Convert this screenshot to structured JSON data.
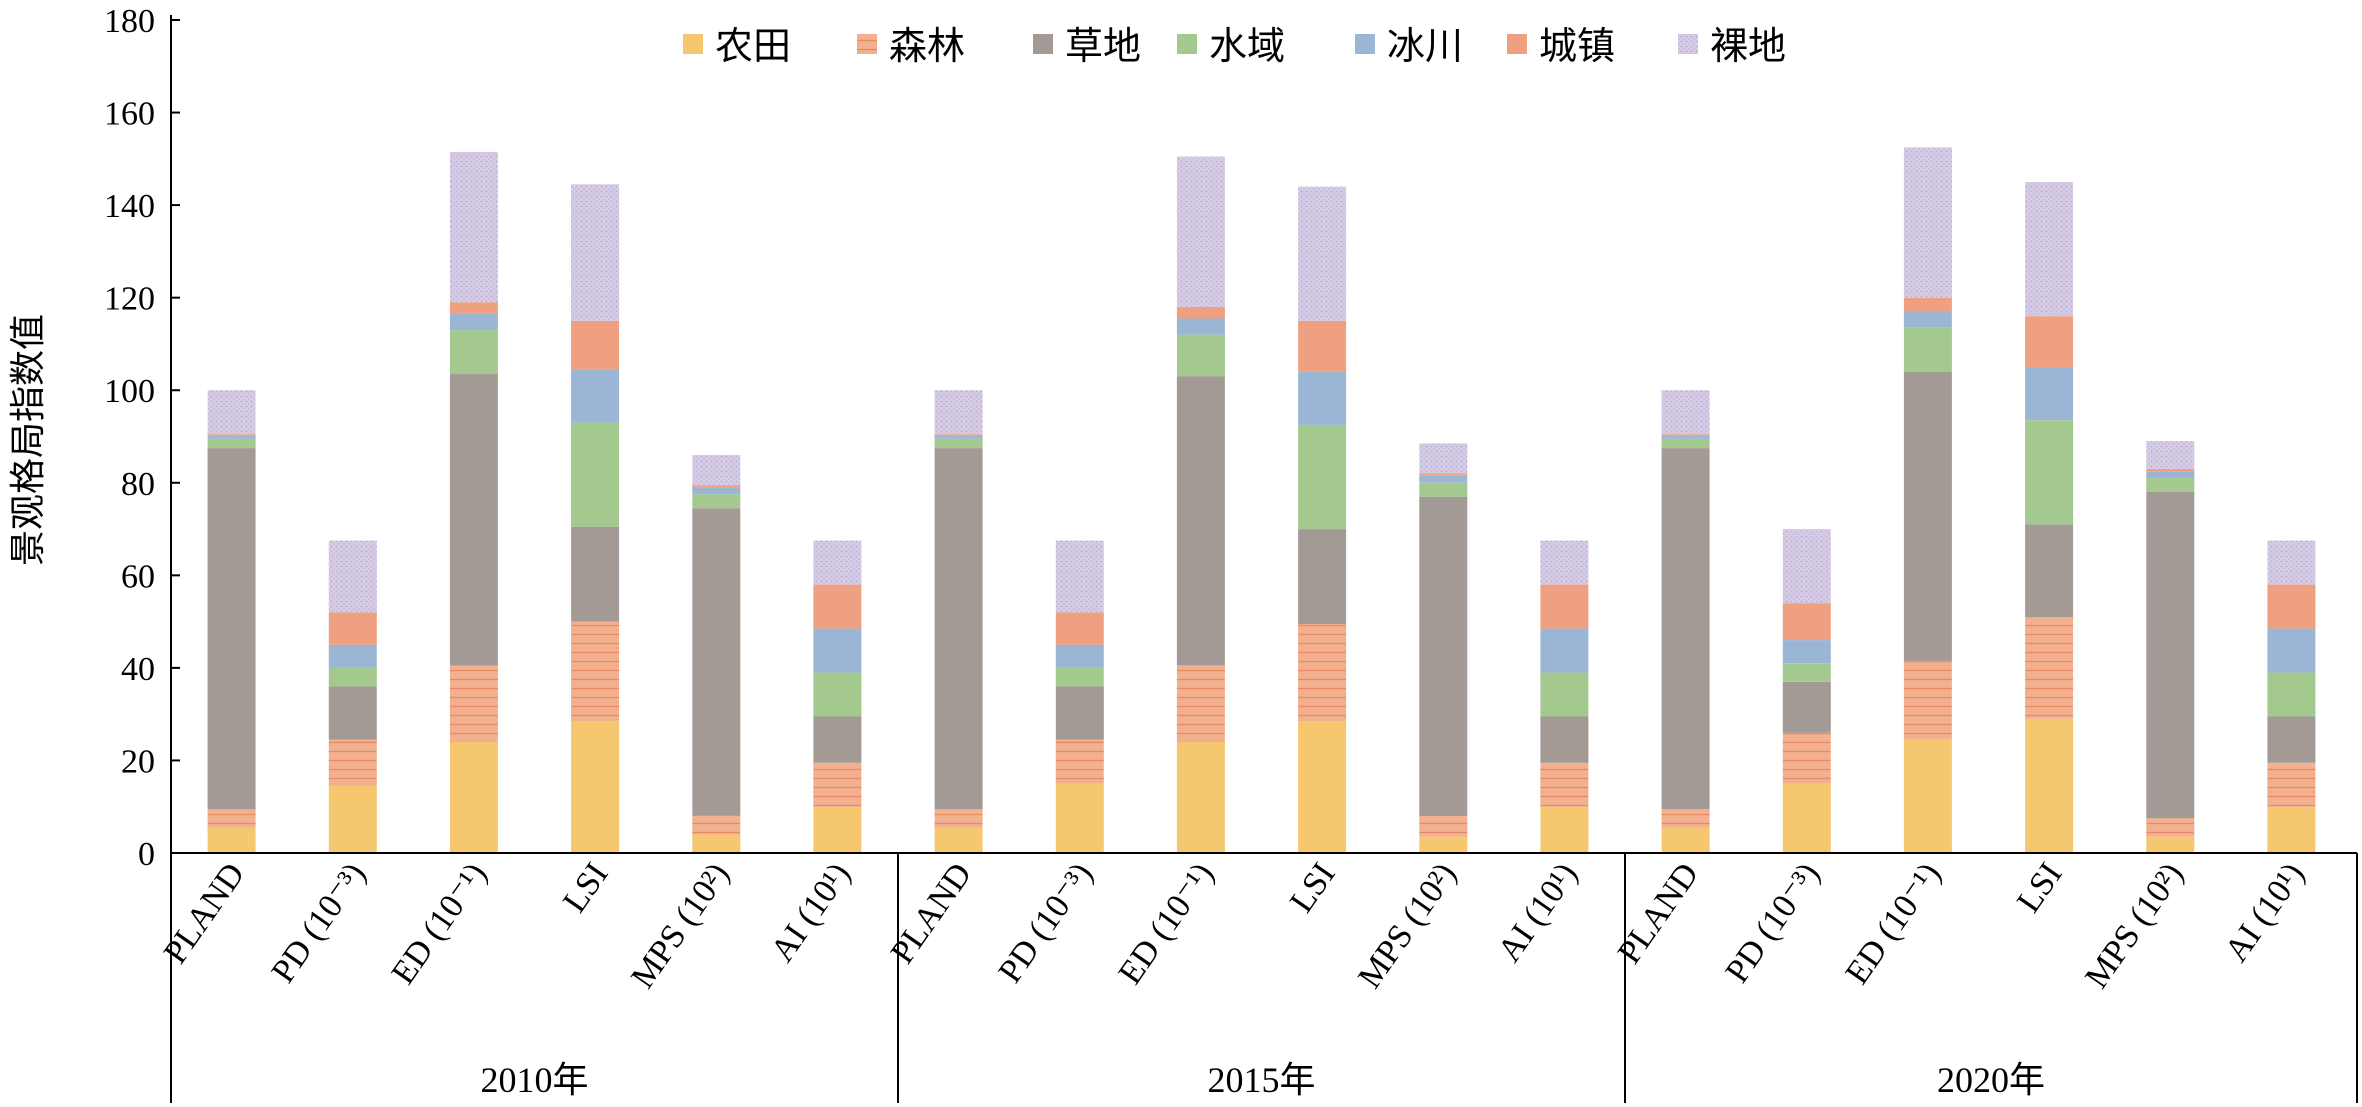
{
  "chart_data": {
    "type": "bar",
    "stacked": true,
    "ylabel": "景观格局指数值",
    "ylim": [
      0,
      180
    ],
    "yticks": [
      0,
      20,
      40,
      60,
      80,
      100,
      120,
      140,
      160,
      180
    ],
    "grid": false,
    "legend_position": "top",
    "group_labels": [
      "2010年",
      "2015年",
      "2020年"
    ],
    "category_labels": [
      "PLAND",
      "PD (10⁻³)",
      "ED (10⁻¹)",
      "LSI",
      "MPS (10²)",
      "AI (10¹)"
    ],
    "series": [
      {
        "name": "农田",
        "color": "#f5c870",
        "pattern": "none",
        "values": [
          5.5,
          14.5,
          24,
          28.5,
          4,
          10,
          5.5,
          15,
          24,
          28.5,
          3.5,
          10,
          5.5,
          15,
          24.5,
          29,
          3.5,
          10
        ]
      },
      {
        "name": "森林",
        "color": "#f2b08f",
        "pattern": "hlines",
        "values": [
          4,
          10,
          16.5,
          21.5,
          4,
          9.5,
          4,
          9.5,
          16.5,
          21,
          4.5,
          9.5,
          4,
          11,
          17,
          22,
          4,
          9.5
        ]
      },
      {
        "name": "草地",
        "color": "#a39a96",
        "pattern": "none",
        "values": [
          78,
          11.5,
          63,
          20.5,
          66.5,
          10,
          78,
          11.5,
          62.5,
          20.5,
          69,
          10,
          78,
          11,
          62.5,
          20,
          70.5,
          10
        ]
      },
      {
        "name": "水域",
        "color": "#a3c98f",
        "pattern": "none",
        "values": [
          2,
          4,
          9.5,
          22.5,
          3,
          9.5,
          2,
          4,
          9,
          22.5,
          3,
          9.5,
          2,
          4,
          9.5,
          22.5,
          3,
          9.5
        ]
      },
      {
        "name": "冰川",
        "color": "#9ab6d4",
        "pattern": "none",
        "values": [
          0.7,
          5,
          3.5,
          11.5,
          1.5,
          9.5,
          0.7,
          5,
          3.5,
          11.5,
          1.5,
          9.5,
          0.7,
          5,
          3.5,
          11.5,
          1.5,
          9.5
        ]
      },
      {
        "name": "城镇",
        "color": "#eea080",
        "pattern": "none",
        "values": [
          0.3,
          7,
          2.5,
          10.5,
          0.5,
          9.5,
          0.3,
          7,
          2.5,
          11,
          0.5,
          9.5,
          0.3,
          8,
          3,
          11,
          0.5,
          9.5
        ]
      },
      {
        "name": "裸地",
        "color": "#d6cce6",
        "pattern": "dots",
        "values": [
          9.5,
          15.5,
          32.5,
          29.5,
          6.5,
          9.5,
          9.5,
          15.5,
          32.5,
          29,
          6.5,
          9.5,
          9.5,
          16,
          32.5,
          29,
          6,
          9.5
        ]
      }
    ]
  }
}
